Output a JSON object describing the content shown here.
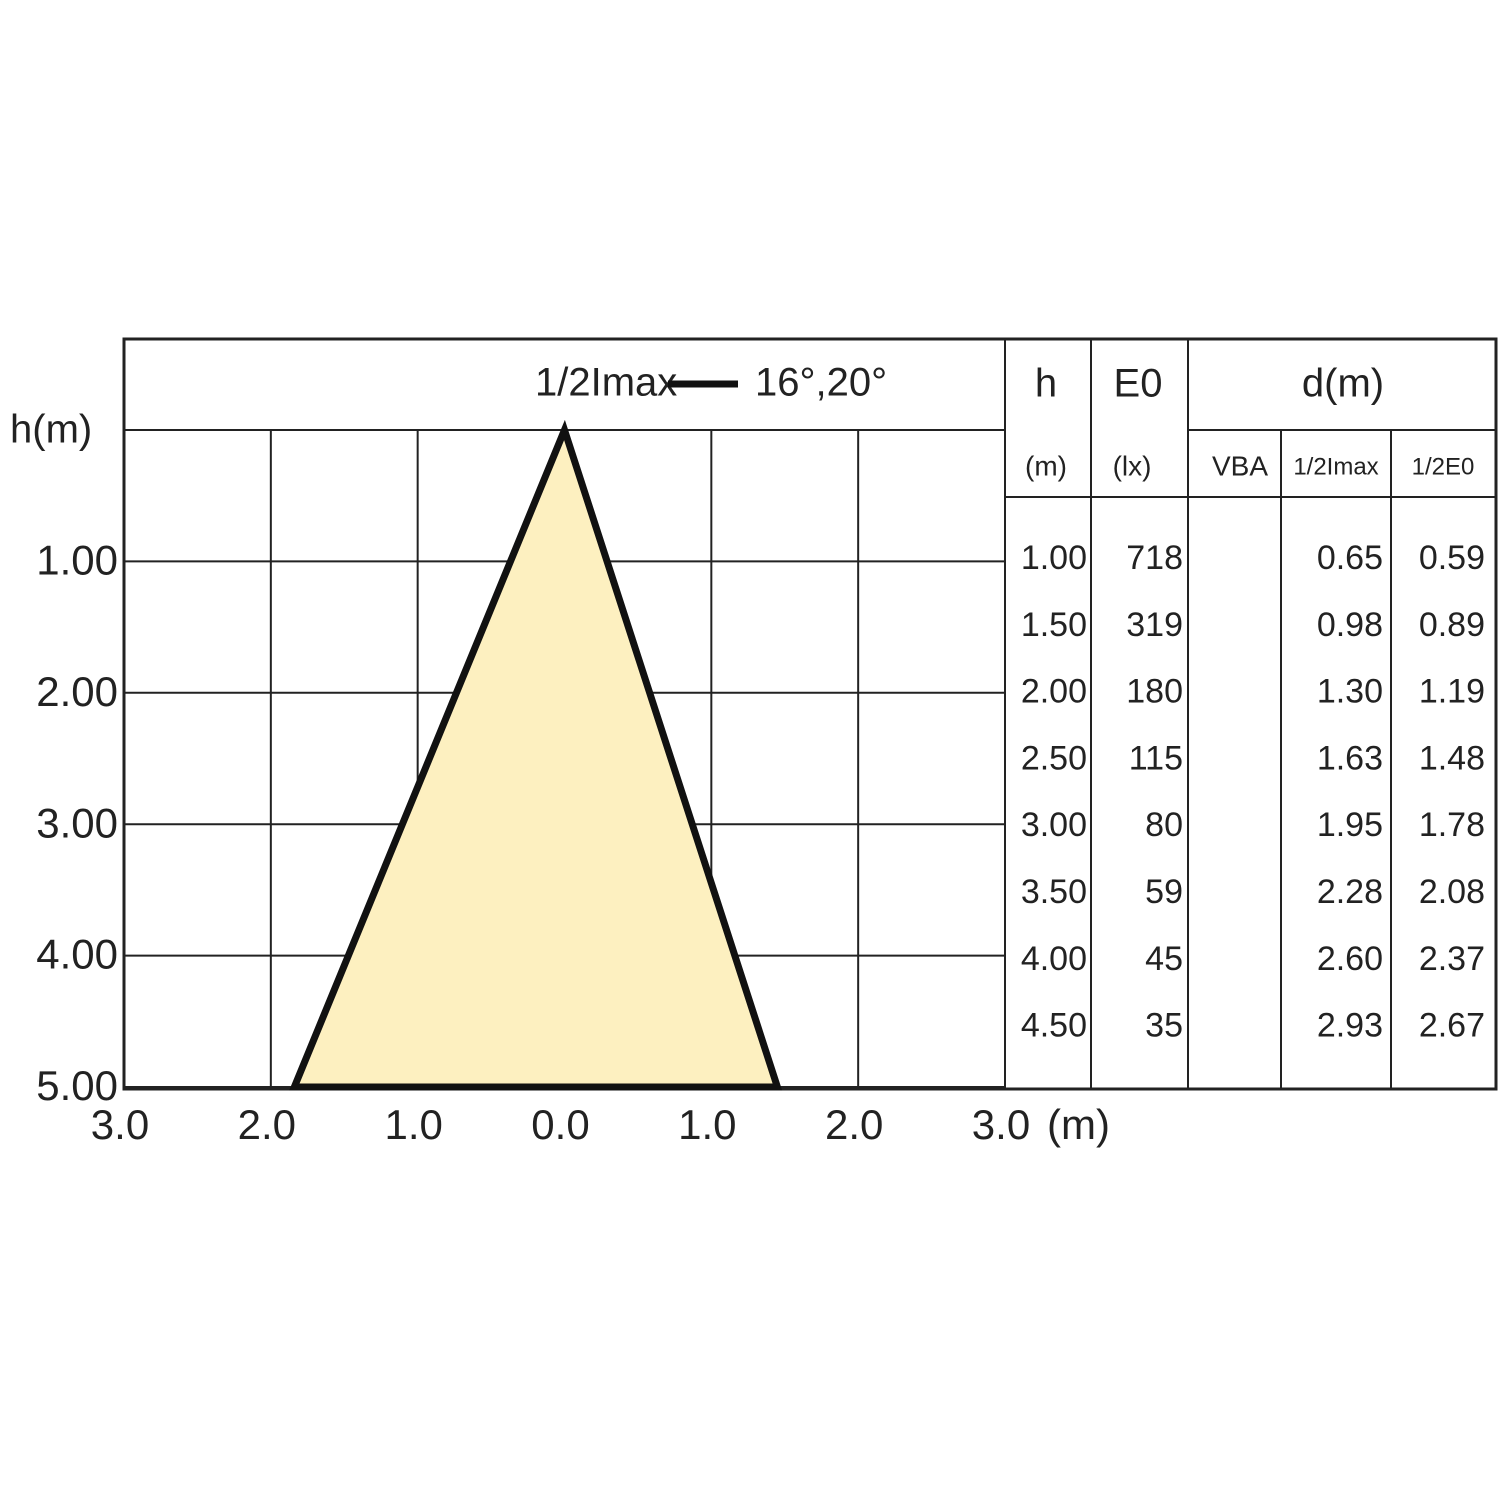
{
  "chart_data": {
    "type": "cone",
    "ylabel": "h(m)",
    "xlabel": "(m)",
    "series": [
      {
        "name": "1/2Imax",
        "color": "#fdf0c0",
        "x": [
          0,
          -1.84,
          1.45
        ],
        "y": [
          0,
          5,
          5
        ]
      }
    ],
    "annotation": "16°,20°",
    "xlim": [
      -3,
      3
    ],
    "xticks": [
      {
        "value": -3,
        "label": "3.0"
      },
      {
        "value": -2,
        "label": "2.0"
      },
      {
        "value": -1,
        "label": "1.0"
      },
      {
        "value": 0,
        "label": "0.0"
      },
      {
        "value": 1,
        "label": "1.0"
      },
      {
        "value": 2,
        "label": "2.0"
      },
      {
        "value": 3,
        "label": "3.0"
      }
    ],
    "ylim": [
      0,
      5
    ],
    "yticks": [
      0,
      {
        "value": 1,
        "label": "1.00"
      },
      {
        "value": 2,
        "label": "2.00"
      },
      {
        "value": 3,
        "label": "3.00"
      },
      {
        "value": 4,
        "label": "4.00"
      },
      {
        "value": 5,
        "label": "5.00"
      }
    ],
    "grid": true
  },
  "table": {
    "header": [
      "h",
      "E0",
      "d(m)"
    ],
    "subheader": [
      "(m)",
      "(lx)",
      "VBA",
      "1/2Imax",
      "1/2E0"
    ],
    "rows": [
      [
        "1.00",
        "718",
        "0.65",
        "0.59"
      ],
      [
        "1.50",
        "319",
        "0.98",
        "0.89"
      ],
      [
        "2.00",
        "180",
        "1.30",
        "1.19"
      ],
      [
        "2.50",
        "115",
        "1.63",
        "1.48"
      ],
      [
        "3.00",
        "80",
        "1.95",
        "1.78"
      ],
      [
        "3.50",
        "59",
        "2.28",
        "2.08"
      ],
      [
        "4.00",
        "45",
        "2.60",
        "2.37"
      ],
      [
        "4.50",
        "35",
        "2.93",
        "2.67"
      ]
    ]
  }
}
